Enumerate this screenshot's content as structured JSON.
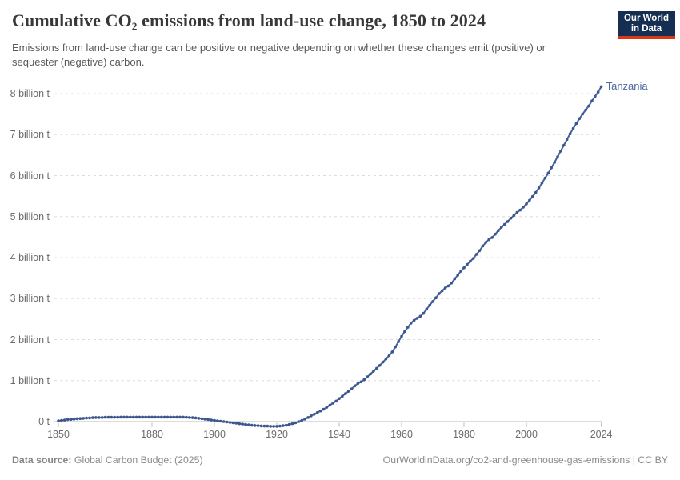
{
  "header": {
    "title": "Cumulative CO₂ emissions from land-use change, 1850 to 2024",
    "subtitle": "Emissions from land-use change can be positive or negative depending on whether these changes emit (positive) or sequester (negative) carbon.",
    "logo": {
      "line1": "Our World",
      "line2": "in Data"
    }
  },
  "footer": {
    "source_label": "Data source:",
    "source_value": " Global Carbon Budget (2025)",
    "attribution": "OurWorldinData.org/co2-and-greenhouse-gas-emissions | CC BY"
  },
  "colors": {
    "line": "#46639b",
    "dot": "#3c568e",
    "series_label": "#4c6a9e",
    "gridline": "#dcdcdc",
    "axis_line": "#b8b8b8",
    "tick_text": "#6b6b6b",
    "logo_navy": "#152e52",
    "logo_red": "#dc3714"
  },
  "chart_data": {
    "type": "line",
    "title": "Cumulative CO₂ emissions from land-use change, 1850 to 2024",
    "xlabel": "",
    "ylabel": "",
    "unit": "billion t",
    "xlim": [
      1850,
      2024
    ],
    "ylim": [
      -0.3,
      8.5
    ],
    "grid": "dashed-horizontal",
    "legend_position": "line-end-label",
    "x_start": 1850,
    "x_step": 1,
    "x_ticks": [
      1850,
      1880,
      1900,
      1920,
      1940,
      1960,
      1980,
      2000,
      2024
    ],
    "y_ticks": [
      {
        "value": 0,
        "label": "0 t"
      },
      {
        "value": 1,
        "label": "1 billion t"
      },
      {
        "value": 2,
        "label": "2 billion t"
      },
      {
        "value": 3,
        "label": "3 billion t"
      },
      {
        "value": 4,
        "label": "4 billion t"
      },
      {
        "value": 5,
        "label": "5 billion t"
      },
      {
        "value": 6,
        "label": "6 billion t"
      },
      {
        "value": 7,
        "label": "7 billion t"
      },
      {
        "value": 8,
        "label": "8 billion t"
      }
    ],
    "series": [
      {
        "name": "Tanzania",
        "color": "#46639b",
        "dot_color": "#3c568e",
        "values": [
          0.02,
          0.03,
          0.04,
          0.05,
          0.055,
          0.06,
          0.07,
          0.075,
          0.08,
          0.085,
          0.09,
          0.095,
          0.1,
          0.1,
          0.1,
          0.105,
          0.105,
          0.105,
          0.105,
          0.105,
          0.11,
          0.11,
          0.11,
          0.11,
          0.11,
          0.11,
          0.11,
          0.11,
          0.11,
          0.11,
          0.11,
          0.11,
          0.11,
          0.11,
          0.11,
          0.11,
          0.11,
          0.11,
          0.11,
          0.11,
          0.11,
          0.105,
          0.1,
          0.095,
          0.09,
          0.08,
          0.07,
          0.06,
          0.05,
          0.04,
          0.03,
          0.02,
          0.01,
          0.0,
          -0.01,
          -0.02,
          -0.03,
          -0.04,
          -0.05,
          -0.06,
          -0.07,
          -0.08,
          -0.09,
          -0.095,
          -0.1,
          -0.105,
          -0.11,
          -0.11,
          -0.115,
          -0.115,
          -0.115,
          -0.11,
          -0.1,
          -0.09,
          -0.07,
          -0.05,
          -0.03,
          0.0,
          0.03,
          0.06,
          0.1,
          0.14,
          0.18,
          0.22,
          0.26,
          0.3,
          0.35,
          0.4,
          0.45,
          0.5,
          0.56,
          0.62,
          0.68,
          0.74,
          0.8,
          0.87,
          0.93,
          0.97,
          1.02,
          1.09,
          1.16,
          1.23,
          1.3,
          1.37,
          1.45,
          1.53,
          1.61,
          1.7,
          1.82,
          1.95,
          2.08,
          2.2,
          2.3,
          2.4,
          2.47,
          2.52,
          2.57,
          2.64,
          2.74,
          2.84,
          2.93,
          3.02,
          3.12,
          3.19,
          3.26,
          3.31,
          3.38,
          3.48,
          3.57,
          3.67,
          3.75,
          3.83,
          3.91,
          3.98,
          4.08,
          4.17,
          4.28,
          4.37,
          4.44,
          4.49,
          4.57,
          4.66,
          4.74,
          4.81,
          4.88,
          4.96,
          5.03,
          5.1,
          5.16,
          5.23,
          5.31,
          5.4,
          5.49,
          5.59,
          5.7,
          5.82,
          5.94,
          6.06,
          6.19,
          6.32,
          6.46,
          6.6,
          6.74,
          6.88,
          7.02,
          7.15,
          7.27,
          7.39,
          7.5,
          7.6,
          7.7,
          7.82,
          7.93,
          8.04,
          8.17
        ]
      }
    ]
  }
}
